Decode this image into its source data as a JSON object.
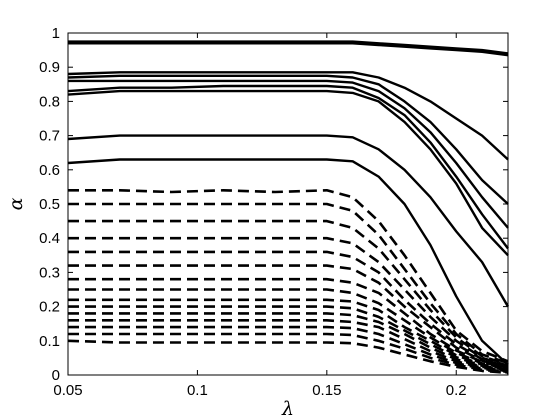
{
  "chart_data": {
    "type": "line",
    "title": "",
    "xlabel": "λ",
    "ylabel": "α",
    "xlim": [
      0.05,
      0.22
    ],
    "ylim": [
      0,
      1
    ],
    "x_ticks": [
      "0.05",
      "0.1",
      "0.15",
      "0.2"
    ],
    "x_tick_values": [
      0.05,
      0.1,
      0.15,
      0.2
    ],
    "y_ticks": [
      "0",
      "0.1",
      "0.2",
      "0.3",
      "0.4",
      "0.5",
      "0.6",
      "0.7",
      "0.8",
      "0.9",
      "1"
    ],
    "y_tick_values": [
      0,
      0.1,
      0.2,
      0.3,
      0.4,
      0.5,
      0.6,
      0.7,
      0.8,
      0.9,
      1
    ],
    "grid": false,
    "legend": "none",
    "x": [
      0.05,
      0.07,
      0.09,
      0.11,
      0.13,
      0.15,
      0.16,
      0.17,
      0.18,
      0.19,
      0.2,
      0.21,
      0.22
    ],
    "solid_series": [
      {
        "values": [
          0.97,
          0.97,
          0.97,
          0.97,
          0.97,
          0.97,
          0.97,
          0.965,
          0.96,
          0.955,
          0.95,
          0.945,
          0.935
        ]
      },
      {
        "values": [
          0.975,
          0.975,
          0.975,
          0.975,
          0.975,
          0.975,
          0.975,
          0.97,
          0.965,
          0.96,
          0.955,
          0.95,
          0.94
        ]
      },
      {
        "values": [
          0.88,
          0.885,
          0.885,
          0.885,
          0.885,
          0.885,
          0.885,
          0.87,
          0.84,
          0.8,
          0.75,
          0.7,
          0.63
        ]
      },
      {
        "values": [
          0.87,
          0.875,
          0.875,
          0.875,
          0.875,
          0.875,
          0.87,
          0.85,
          0.8,
          0.74,
          0.66,
          0.57,
          0.5
        ]
      },
      {
        "values": [
          0.86,
          0.86,
          0.86,
          0.86,
          0.86,
          0.86,
          0.855,
          0.83,
          0.78,
          0.71,
          0.62,
          0.52,
          0.43
        ]
      },
      {
        "values": [
          0.83,
          0.84,
          0.84,
          0.845,
          0.845,
          0.845,
          0.84,
          0.81,
          0.76,
          0.68,
          0.58,
          0.47,
          0.37
        ]
      },
      {
        "values": [
          0.82,
          0.83,
          0.83,
          0.83,
          0.83,
          0.83,
          0.825,
          0.8,
          0.74,
          0.66,
          0.56,
          0.43,
          0.35
        ]
      },
      {
        "values": [
          0.69,
          0.7,
          0.7,
          0.7,
          0.7,
          0.7,
          0.695,
          0.66,
          0.6,
          0.52,
          0.42,
          0.33,
          0.2
        ]
      },
      {
        "values": [
          0.62,
          0.63,
          0.63,
          0.63,
          0.63,
          0.63,
          0.625,
          0.58,
          0.5,
          0.38,
          0.23,
          0.1,
          0.03
        ]
      }
    ],
    "dashed_series": [
      {
        "values": [
          0.54,
          0.54,
          0.535,
          0.54,
          0.535,
          0.54,
          0.52,
          0.45,
          0.35,
          0.24,
          0.13,
          0.07,
          0.04
        ]
      },
      {
        "values": [
          0.5,
          0.5,
          0.5,
          0.5,
          0.5,
          0.5,
          0.48,
          0.41,
          0.31,
          0.21,
          0.12,
          0.06,
          0.035
        ]
      },
      {
        "values": [
          0.45,
          0.45,
          0.45,
          0.45,
          0.45,
          0.45,
          0.43,
          0.37,
          0.28,
          0.19,
          0.11,
          0.055,
          0.03
        ]
      },
      {
        "values": [
          0.4,
          0.4,
          0.4,
          0.4,
          0.4,
          0.4,
          0.385,
          0.33,
          0.25,
          0.17,
          0.1,
          0.05,
          0.027
        ]
      },
      {
        "values": [
          0.36,
          0.36,
          0.36,
          0.36,
          0.36,
          0.36,
          0.345,
          0.3,
          0.22,
          0.15,
          0.09,
          0.046,
          0.024
        ]
      },
      {
        "values": [
          0.32,
          0.32,
          0.32,
          0.32,
          0.32,
          0.32,
          0.31,
          0.27,
          0.2,
          0.14,
          0.08,
          0.042,
          0.022
        ]
      },
      {
        "values": [
          0.28,
          0.28,
          0.28,
          0.28,
          0.28,
          0.28,
          0.27,
          0.24,
          0.18,
          0.12,
          0.072,
          0.038,
          0.02
        ]
      },
      {
        "values": [
          0.25,
          0.25,
          0.25,
          0.25,
          0.25,
          0.25,
          0.24,
          0.21,
          0.16,
          0.11,
          0.065,
          0.034,
          0.018
        ]
      },
      {
        "values": [
          0.22,
          0.22,
          0.22,
          0.22,
          0.22,
          0.22,
          0.215,
          0.19,
          0.14,
          0.1,
          0.058,
          0.03,
          0.016
        ]
      },
      {
        "values": [
          0.2,
          0.2,
          0.2,
          0.2,
          0.2,
          0.2,
          0.195,
          0.17,
          0.13,
          0.09,
          0.052,
          0.027,
          0.014
        ]
      },
      {
        "values": [
          0.18,
          0.18,
          0.18,
          0.18,
          0.18,
          0.18,
          0.175,
          0.155,
          0.12,
          0.08,
          0.046,
          0.024,
          0.012
        ]
      },
      {
        "values": [
          0.16,
          0.16,
          0.16,
          0.16,
          0.16,
          0.16,
          0.155,
          0.14,
          0.105,
          0.07,
          0.04,
          0.021,
          0.011
        ]
      },
      {
        "values": [
          0.14,
          0.14,
          0.14,
          0.14,
          0.14,
          0.14,
          0.137,
          0.12,
          0.09,
          0.06,
          0.035,
          0.018,
          0.009
        ]
      },
      {
        "values": [
          0.12,
          0.12,
          0.12,
          0.12,
          0.12,
          0.12,
          0.117,
          0.1,
          0.077,
          0.05,
          0.03,
          0.015,
          0.008
        ]
      },
      {
        "values": [
          0.1,
          0.095,
          0.095,
          0.095,
          0.095,
          0.095,
          0.093,
          0.08,
          0.06,
          0.04,
          0.024,
          0.012,
          0.006
        ]
      }
    ]
  }
}
